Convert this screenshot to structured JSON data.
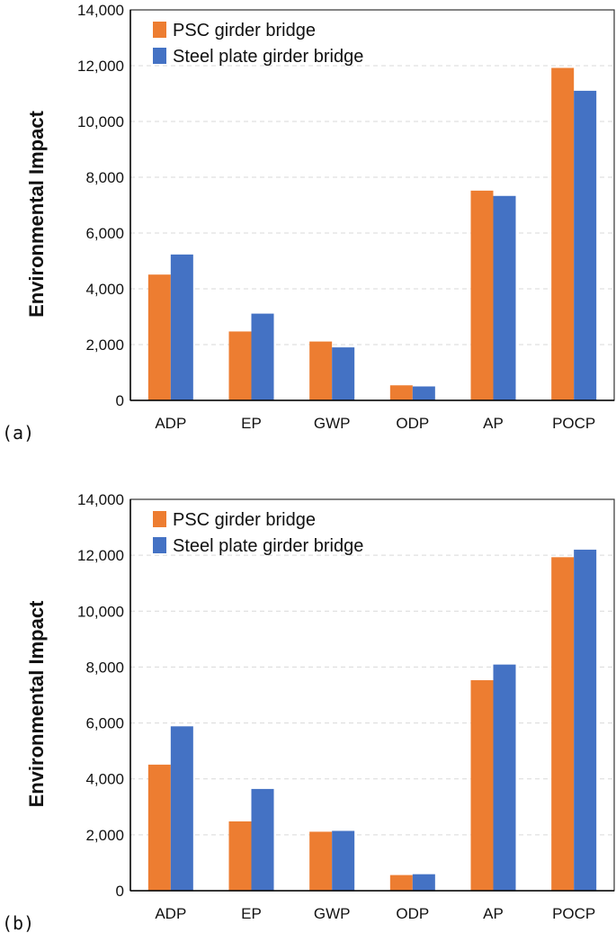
{
  "colors": {
    "psc": "#ED7D31",
    "steel": "#4472C4",
    "grid": "#D9D9D9",
    "axis": "#333333"
  },
  "chart_data": [
    {
      "type": "bar",
      "panel_label": "(a)",
      "categories": [
        "ADP",
        "EP",
        "GWP",
        "ODP",
        "AP",
        "POCP"
      ],
      "series": [
        {
          "name": "PSC girder bridge",
          "values": [
            4510,
            2470,
            2110,
            540,
            7520,
            11920
          ]
        },
        {
          "name": "Steel plate girder bridge",
          "values": [
            5230,
            3110,
            1900,
            500,
            7330,
            11100
          ]
        }
      ],
      "ylabel": "Environmental Impact",
      "ylim": [
        0,
        14000
      ],
      "yticks": [
        "0",
        "2,000",
        "4,000",
        "6,000",
        "8,000",
        "10,000",
        "12,000",
        "14,000"
      ],
      "grid": true,
      "legend": "top-left"
    },
    {
      "type": "bar",
      "panel_label": "(b)",
      "categories": [
        "ADP",
        "EP",
        "GWP",
        "ODP",
        "AP",
        "POCP"
      ],
      "series": [
        {
          "name": "PSC girder bridge",
          "values": [
            4510,
            2480,
            2110,
            560,
            7530,
            11930
          ]
        },
        {
          "name": "Steel plate girder bridge",
          "values": [
            5880,
            3640,
            2140,
            590,
            8090,
            12200
          ]
        }
      ],
      "ylabel": "Environmental Impact",
      "ylim": [
        0,
        14000
      ],
      "yticks": [
        "0",
        "2,000",
        "4,000",
        "6,000",
        "8,000",
        "10,000",
        "12,000",
        "14,000"
      ],
      "grid": true,
      "legend": "top-left"
    }
  ]
}
